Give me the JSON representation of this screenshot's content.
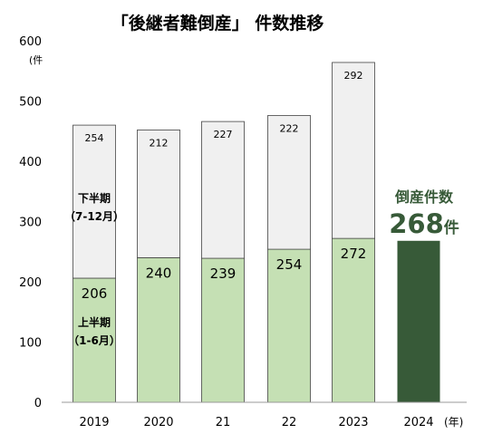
{
  "chart_data": {
    "type": "bar",
    "title": "「後継者難倒産」 件数推移",
    "y_unit": "(件",
    "x_unit": "(年)",
    "ylim": [
      0,
      600
    ],
    "yticks": [
      "0",
      "100",
      "200",
      "300",
      "400",
      "500",
      "600"
    ],
    "categories": [
      "2019",
      "2020",
      "21",
      "22",
      "2023",
      "2024"
    ],
    "series": [
      {
        "name": "上半期（1-6月）",
        "values": [
          206,
          240,
          239,
          254,
          272,
          null
        ]
      },
      {
        "name": "下半期（7-12月）",
        "values": [
          254,
          212,
          227,
          222,
          292,
          null
        ]
      },
      {
        "name": "倒産件数",
        "values": [
          null,
          null,
          null,
          null,
          null,
          268
        ]
      }
    ],
    "stacked": true,
    "annotations": {
      "lower_label_line1": "上半期",
      "lower_label_line2": "（1-6月）",
      "upper_label_line1": "下半期",
      "upper_label_line2": "（7-12月）",
      "highlight_label": "倒産件数",
      "highlight_value": "268",
      "highlight_unit": "件"
    },
    "colors": {
      "h1": "#c5e0b4",
      "h2": "#f0f0f0",
      "highlight": "#375a38",
      "border": "#444444"
    }
  }
}
